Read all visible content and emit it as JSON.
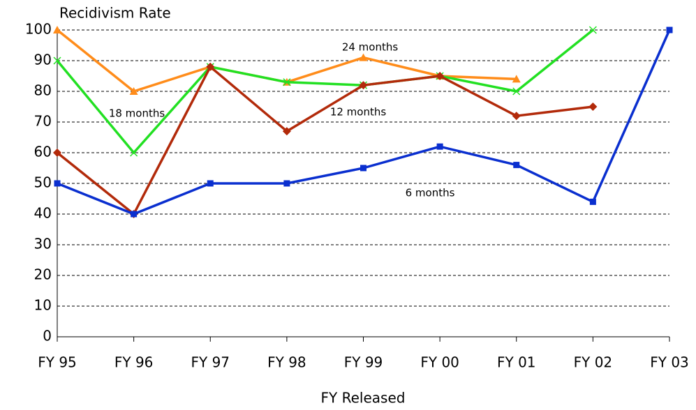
{
  "chart_data": {
    "type": "line",
    "title": "Recidivism Rate",
    "x_label": "FY Released",
    "categories": [
      "FY 95",
      "FY 96",
      "FY 97",
      "FY 98",
      "FY 99",
      "FY 00",
      "FY 01",
      "FY 02",
      "FY 03"
    ],
    "series": [
      {
        "name": "6 months",
        "color": "#0a2fcf",
        "marker": "square",
        "values": [
          50,
          40,
          50,
          50,
          55,
          62,
          56,
          44,
          100
        ]
      },
      {
        "name": "12 months",
        "color": "#b22a0a",
        "marker": "diamond",
        "values": [
          60,
          40,
          88,
          67,
          82,
          85,
          72,
          75,
          null
        ]
      },
      {
        "name": "18 months",
        "color": "#22e022",
        "marker": "x",
        "values": [
          90,
          60,
          88,
          83,
          82,
          85,
          80,
          100,
          null
        ]
      },
      {
        "name": "24 months",
        "color": "#ff8c1a",
        "marker": "triangle",
        "values": [
          100,
          80,
          88,
          83,
          91,
          85,
          84,
          null,
          null
        ]
      }
    ],
    "ylim": [
      0,
      100
    ],
    "yticks": [
      0,
      10,
      20,
      30,
      40,
      50,
      60,
      70,
      80,
      90,
      100
    ],
    "grid": true
  }
}
